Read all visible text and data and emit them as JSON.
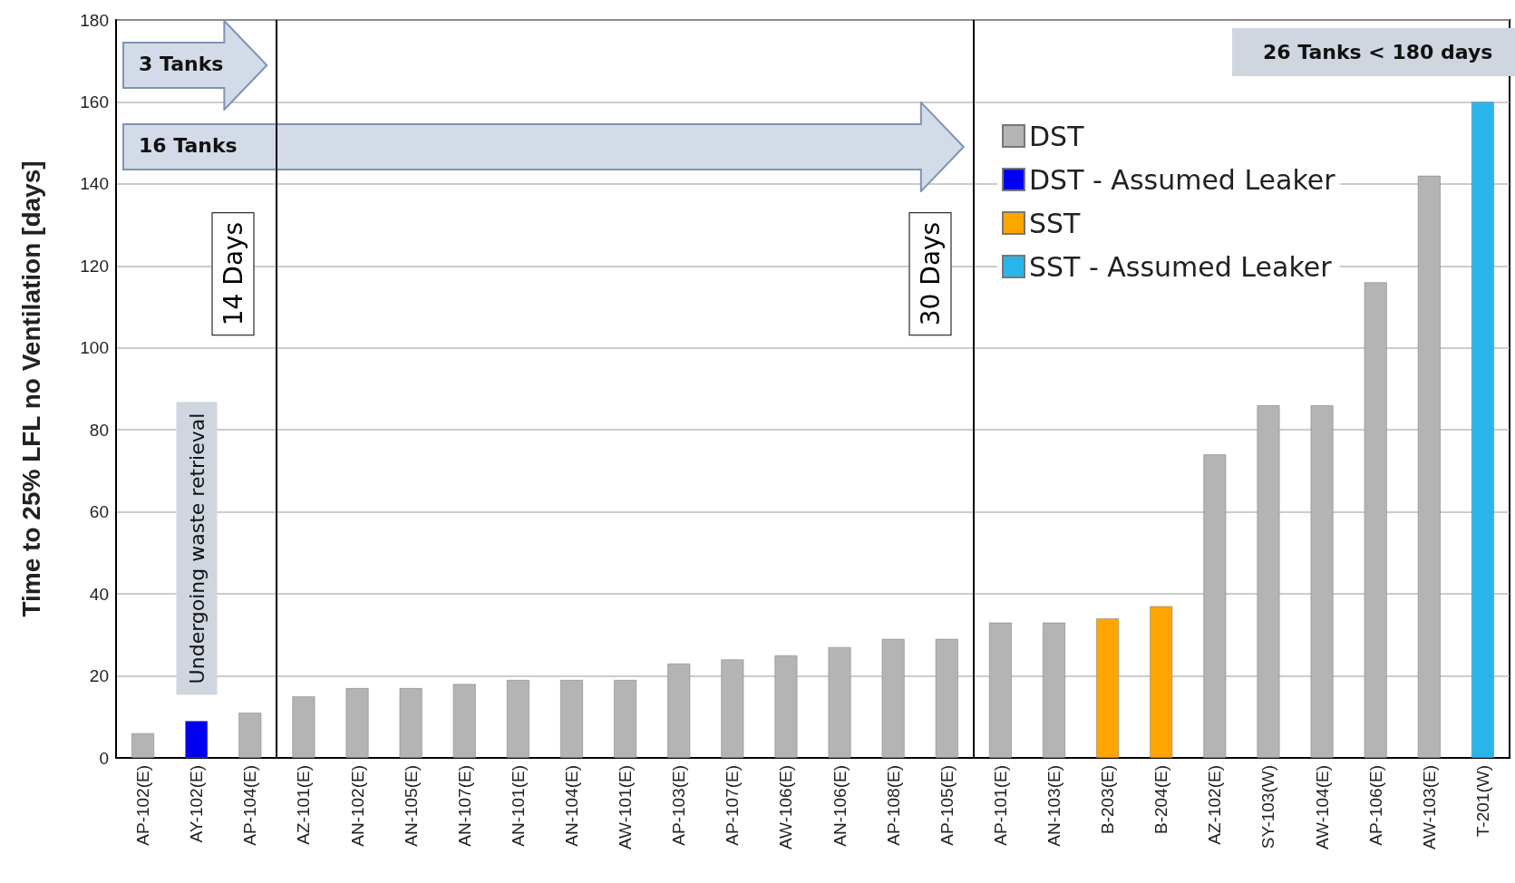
{
  "chart_data": {
    "type": "bar",
    "ylabel": "Time to 25% LFL no Ventilation [days]",
    "categories": [
      "AP-102(E)",
      "AY-102(E)",
      "AP-104(E)",
      "AZ-101(E)",
      "AN-102(E)",
      "AN-105(E)",
      "AN-107(E)",
      "AN-101(E)",
      "AN-104(E)",
      "AW-101(E)",
      "AP-103(E)",
      "AP-107(E)",
      "AW-106(E)",
      "AN-106(E)",
      "AP-108(E)",
      "AP-105(E)",
      "AP-101(E)",
      "AN-103(E)",
      "B-203(E)",
      "B-204(E)",
      "AZ-102(E)",
      "SY-103(W)",
      "AW-104(E)",
      "AP-106(E)",
      "AW-103(E)",
      "T-201(W)"
    ],
    "series": [
      {
        "name": "DST",
        "color": "#b4b4b4",
        "values": [
          6,
          null,
          11,
          15,
          17,
          17,
          18,
          19,
          19,
          19,
          23,
          24,
          25,
          27,
          29,
          29,
          33,
          33,
          null,
          null,
          74,
          86,
          86,
          116,
          142,
          null
        ]
      },
      {
        "name": "DST - Assumed Leaker",
        "color": "#0000ee",
        "values": [
          null,
          9,
          null,
          null,
          null,
          null,
          null,
          null,
          null,
          null,
          null,
          null,
          null,
          null,
          null,
          null,
          null,
          null,
          null,
          null,
          null,
          null,
          null,
          null,
          null,
          null
        ]
      },
      {
        "name": "SST",
        "color": "#ffa500",
        "values": [
          null,
          null,
          null,
          null,
          null,
          null,
          null,
          null,
          null,
          null,
          null,
          null,
          null,
          null,
          null,
          null,
          null,
          null,
          34,
          37,
          null,
          null,
          null,
          null,
          null,
          null
        ]
      },
      {
        "name": "SST - Assumed Leaker",
        "color": "#29b5ea",
        "values": [
          null,
          null,
          null,
          null,
          null,
          null,
          null,
          null,
          null,
          null,
          null,
          null,
          null,
          null,
          null,
          null,
          null,
          null,
          null,
          null,
          null,
          null,
          null,
          null,
          null,
          160
        ]
      }
    ],
    "ylim": [
      0,
      180
    ],
    "yticks": [
      0,
      20,
      40,
      60,
      80,
      100,
      120,
      140,
      160,
      180
    ],
    "grid": "y",
    "legend": "top right",
    "annotations": [
      "3 Tanks",
      "16 Tanks",
      "26 Tanks < 180 days",
      "Undergoing waste retrieval",
      "14 Days",
      "30 Days"
    ]
  }
}
